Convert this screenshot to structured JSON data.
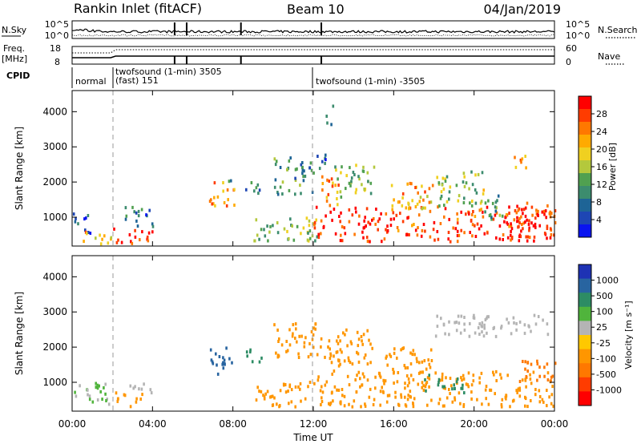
{
  "header": {
    "station": "Rankin Inlet (fitACF)",
    "beam": "Beam 10",
    "date": "04/Jan/2019"
  },
  "noise_panel": {
    "left_label": "N.Sky",
    "right_label": "N.Search",
    "left_ticks": [
      "10^5",
      "10^0"
    ],
    "right_ticks": [
      "10^5",
      "10^0"
    ]
  },
  "freq_panel": {
    "left_label_1": "Freq.",
    "left_label_2": "[MHz]",
    "right_label": "Nave",
    "left_ticks": [
      "18",
      "8"
    ],
    "right_ticks": [
      "60",
      "0"
    ]
  },
  "cpid": {
    "label": "CPID",
    "segments": [
      {
        "line1": "normal",
        "line2": ""
      },
      {
        "line1": "twofsound (1-min) 3505",
        "line2": "(fast) 151"
      },
      {
        "line1": "twofsound (1-min) -3505",
        "line2": ""
      }
    ]
  },
  "x_axis": {
    "label": "Time UT",
    "ticks": [
      "00:00",
      "04:00",
      "08:00",
      "12:00",
      "16:00",
      "20:00",
      "00:00"
    ]
  },
  "power_colorbar": {
    "label": "Power [dB]",
    "ticks": [
      "28",
      "24",
      "20",
      "16",
      "12",
      "8",
      "4"
    ],
    "colors": [
      "#ff0000",
      "#ff3c00",
      "#ff7800",
      "#ffaa00",
      "#f0d020",
      "#b4c83c",
      "#50a050",
      "#3c8c6e",
      "#1e6496",
      "#1e46b4",
      "#0a14f0"
    ]
  },
  "velocity_colorbar": {
    "label": "Velocity [m s⁻¹]",
    "ticks": [
      "1000",
      "500",
      "100",
      "25",
      "-25",
      "-100",
      "-500",
      "-1000"
    ],
    "colors": [
      "#1e32b4",
      "#2864a0",
      "#2d8c64",
      "#50b43c",
      "#b4b4b4",
      "#ffc800",
      "#ff9600",
      "#ff7800",
      "#ff3c00",
      "#ff0000"
    ]
  },
  "chart_data": [
    {
      "type": "heatmap",
      "name": "Power",
      "xlabel": "Time UT",
      "ylabel": "Slant Range [km]",
      "y_ticks": [
        "1000",
        "2000",
        "3000",
        "4000"
      ],
      "xlim": [
        "00:00",
        "24:00"
      ],
      "ylim": [
        180,
        4600
      ],
      "blobs": [
        {
          "t": [
            0.0,
            0.9
          ],
          "r": [
            500,
            1100
          ],
          "level": 8
        },
        {
          "t": [
            0.4,
            1.9
          ],
          "r": [
            200,
            600
          ],
          "level": 22
        },
        {
          "t": [
            2.0,
            4.0
          ],
          "r": [
            250,
            700
          ],
          "level": 28
        },
        {
          "t": [
            2.6,
            4.1
          ],
          "r": [
            700,
            1300
          ],
          "level": 10
        },
        {
          "t": [
            6.8,
            8.1
          ],
          "r": [
            1300,
            2000
          ],
          "level": 24
        },
        {
          "t": [
            7.7,
            8.1
          ],
          "r": [
            1900,
            2200
          ],
          "level": 12
        },
        {
          "t": [
            8.6,
            9.4
          ],
          "r": [
            1500,
            2000
          ],
          "level": 12
        },
        {
          "t": [
            9.0,
            12.2
          ],
          "r": [
            300,
            1000
          ],
          "level": 16
        },
        {
          "t": [
            10.0,
            12.0
          ],
          "r": [
            1600,
            2700
          ],
          "level": 12
        },
        {
          "t": [
            12.0,
            24.0
          ],
          "r": [
            300,
            1300
          ],
          "level": 28
        },
        {
          "t": [
            12.3,
            13.3
          ],
          "r": [
            1300,
            2200
          ],
          "level": 24
        },
        {
          "t": [
            13.0,
            15.0
          ],
          "r": [
            1500,
            2500
          ],
          "level": 16
        },
        {
          "t": [
            15.5,
            18.0
          ],
          "r": [
            1200,
            2000
          ],
          "level": 22
        },
        {
          "t": [
            18.0,
            20.5
          ],
          "r": [
            1300,
            2300
          ],
          "level": 16
        },
        {
          "t": [
            20.5,
            21.5
          ],
          "r": [
            900,
            1800
          ],
          "level": 12
        },
        {
          "t": [
            22.0,
            24.0
          ],
          "r": [
            700,
            1400
          ],
          "level": 28
        },
        {
          "t": [
            21.8,
            22.6
          ],
          "r": [
            2300,
            2800
          ],
          "level": 24
        },
        {
          "t": [
            12.0,
            12.8
          ],
          "r": [
            2300,
            2800
          ],
          "level": 8
        },
        {
          "t": [
            12.6,
            13.0
          ],
          "r": [
            3600,
            4200
          ],
          "level": 8
        }
      ]
    },
    {
      "type": "heatmap",
      "name": "Velocity",
      "xlabel": "Time UT",
      "ylabel": "Slant Range [km]",
      "y_ticks": [
        "1000",
        "2000",
        "3000",
        "4000"
      ],
      "xlim": [
        "00:00",
        "24:00"
      ],
      "ylim": [
        180,
        4600
      ],
      "blobs": [
        {
          "t": [
            0.0,
            1.8
          ],
          "r": [
            300,
            1000
          ],
          "level": 25
        },
        {
          "t": [
            2.0,
            3.5
          ],
          "r": [
            300,
            700
          ],
          "level": -100
        },
        {
          "t": [
            2.6,
            4.0
          ],
          "r": [
            700,
            1000
          ],
          "level": 0
        },
        {
          "t": [
            6.8,
            8.1
          ],
          "r": [
            1200,
            2000
          ],
          "level": 500
        },
        {
          "t": [
            8.6,
            9.4
          ],
          "r": [
            1500,
            2000
          ],
          "level": 100
        },
        {
          "t": [
            9.0,
            12.0
          ],
          "r": [
            300,
            1000
          ],
          "level": -100
        },
        {
          "t": [
            10.0,
            12.2
          ],
          "r": [
            1700,
            2700
          ],
          "level": -100
        },
        {
          "t": [
            12.0,
            24.0
          ],
          "r": [
            300,
            1300
          ],
          "level": -100
        },
        {
          "t": [
            12.3,
            13.3
          ],
          "r": [
            1300,
            2300
          ],
          "level": -100
        },
        {
          "t": [
            13.0,
            15.0
          ],
          "r": [
            1500,
            2500
          ],
          "level": -100
        },
        {
          "t": [
            15.5,
            18.0
          ],
          "r": [
            1200,
            2000
          ],
          "level": -100
        },
        {
          "t": [
            18.0,
            24.0
          ],
          "r": [
            2300,
            2900
          ],
          "level": 0
        },
        {
          "t": [
            17.5,
            19.5
          ],
          "r": [
            700,
            1200
          ],
          "level": 100
        },
        {
          "t": [
            22.0,
            24.0
          ],
          "r": [
            1000,
            1600
          ],
          "level": -500
        }
      ]
    }
  ]
}
